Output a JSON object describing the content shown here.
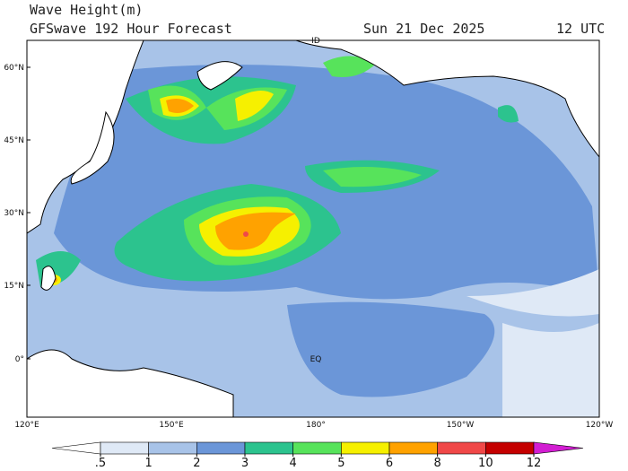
{
  "header": {
    "title": "Wave Height(m)",
    "subtitle": "GFSwave 192 Hour Forecast",
    "date": "Sun 21 Dec 2025",
    "time": "12 UTC"
  },
  "map": {
    "lat_labels": [
      "60°N",
      "45°N",
      "30°N",
      "15°N",
      "0°"
    ],
    "lon_labels": [
      "120°E",
      "150°E",
      "180°",
      "150°W",
      "120°W"
    ],
    "annotations": [
      "ID",
      "EQ"
    ]
  },
  "colorbar": {
    "ticks": [
      {
        "value": 0.5,
        "label": ".5"
      },
      1,
      2,
      3,
      4,
      5,
      6,
      8,
      10,
      12
    ],
    "colors": [
      "#dfe9f6",
      "#a8c3e8",
      "#6b96d8",
      "#2cc38e",
      "#57e35b",
      "#f6f000",
      "#ffa200",
      "#f04848",
      "#c40000"
    ],
    "under_color": "#ffffff",
    "over_color": "#d21ed2"
  }
}
